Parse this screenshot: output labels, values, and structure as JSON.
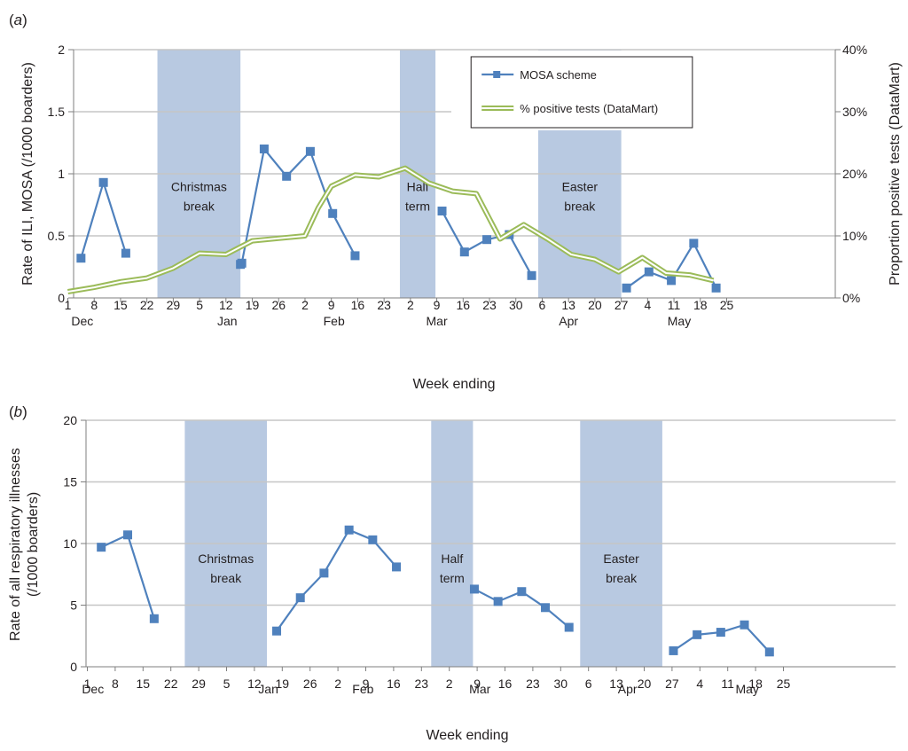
{
  "colors": {
    "mosa": "#4f81bd",
    "positive_line": "#9bbb59",
    "break_shade": "#b8c9e1",
    "grid": "#c6c6c6",
    "axis": "#7f7f7f"
  },
  "chart_data": [
    {
      "type": "line",
      "panel_label": "(a)",
      "xlabel": "Week ending",
      "ylabel": "Rate of ILI, MOSA (/1000 boarders)",
      "y2label": "Proportion positive tests (DataMart)",
      "ylim": [
        0,
        2
      ],
      "y2lim": [
        0,
        40
      ],
      "grid": true,
      "legend_placement": "top-right",
      "x_tick_labels": [
        "1",
        "8",
        "15",
        "22",
        "29",
        "5",
        "12",
        "19",
        "26",
        "2",
        "9",
        "16",
        "23",
        "2",
        "9",
        "16",
        "23",
        "30",
        "6",
        "13",
        "20",
        "27",
        "4",
        "11",
        "18",
        "25"
      ],
      "month_labels": [
        "Dec",
        "Jan",
        "Feb",
        "Mar",
        "Apr",
        "May"
      ],
      "y_tick_labels": [
        "0",
        "0.5",
        "1",
        "1.5",
        "2"
      ],
      "y2_tick_labels": [
        "0%",
        "10%",
        "20%",
        "30%",
        "40%"
      ],
      "breaks": [
        {
          "label": "Christmas break",
          "lines": [
            "Christmas",
            "break"
          ],
          "start": 3.4,
          "end": 6.55
        },
        {
          "label": "Half term",
          "lines": [
            "Half",
            "term"
          ],
          "start": 12.6,
          "end": 13.95
        },
        {
          "label": "Easter break",
          "lines": [
            "Easter",
            "break"
          ],
          "start": 17.85,
          "end": 21.0
        }
      ],
      "series": [
        {
          "name": "MOSA scheme",
          "kind": "markers",
          "segments": [
            [
              [
                0.5,
                0.32
              ],
              [
                1.35,
                0.93
              ],
              [
                2.2,
                0.36
              ]
            ],
            [
              [
                6.55,
                0.27
              ],
              [
                6.6,
                0.28
              ],
              [
                7.45,
                1.2
              ],
              [
                8.3,
                0.98
              ],
              [
                9.2,
                1.18
              ],
              [
                10.05,
                0.68
              ],
              [
                10.9,
                0.34
              ]
            ],
            [
              [
                14.2,
                0.7
              ],
              [
                15.05,
                0.37
              ],
              [
                15.9,
                0.47
              ],
              [
                16.75,
                0.51
              ],
              [
                17.6,
                0.18
              ]
            ],
            [
              [
                21.2,
                0.08
              ],
              [
                22.05,
                0.21
              ],
              [
                22.9,
                0.14
              ],
              [
                23.75,
                0.44
              ],
              [
                24.6,
                0.08
              ]
            ]
          ]
        },
        {
          "name": "% positive tests (DataMart)",
          "kind": "double-line",
          "points": [
            [
              0.0,
              1
            ],
            [
              1.0,
              1.7
            ],
            [
              2.0,
              2.6
            ],
            [
              3.0,
              3.2
            ],
            [
              4.0,
              4.8
            ],
            [
              5.0,
              7.2
            ],
            [
              6.0,
              7.0
            ],
            [
              7.0,
              9.2
            ],
            [
              8.0,
              9.6
            ],
            [
              9.0,
              10.0
            ],
            [
              9.5,
              14.5
            ],
            [
              10.0,
              18.0
            ],
            [
              10.9,
              19.8
            ],
            [
              11.8,
              19.5
            ],
            [
              12.8,
              20.9
            ],
            [
              13.7,
              18.5
            ],
            [
              14.6,
              17.2
            ],
            [
              15.5,
              16.8
            ],
            [
              16.4,
              9.5
            ],
            [
              17.3,
              11.8
            ],
            [
              18.2,
              9.5
            ],
            [
              19.1,
              7.0
            ],
            [
              20.0,
              6.2
            ],
            [
              20.9,
              4.2
            ],
            [
              21.8,
              6.5
            ],
            [
              22.7,
              4.0
            ],
            [
              23.6,
              3.7
            ],
            [
              24.5,
              2.8
            ]
          ]
        }
      ]
    },
    {
      "type": "line",
      "panel_label": "(b)",
      "xlabel": "Week ending",
      "ylabel": "Rate of all respiratory illnesses (/1000 boarders)",
      "ylabel_lines": [
        "Rate of all respiratory illnesses",
        "(/1000 boarders)"
      ],
      "ylim": [
        0,
        20
      ],
      "grid": true,
      "x_tick_labels": [
        "1",
        "8",
        "15",
        "22",
        "29",
        "5",
        "12",
        "19",
        "26",
        "2",
        "9",
        "16",
        "23",
        "2",
        "9",
        "16",
        "23",
        "30",
        "6",
        "13",
        "20",
        "27",
        "4",
        "11",
        "18",
        "25"
      ],
      "month_labels": [
        "Dec",
        "Jan",
        "Feb",
        "Mar",
        "Apr",
        "May"
      ],
      "y_tick_labels": [
        "0",
        "5",
        "10",
        "15",
        "20"
      ],
      "breaks": [
        {
          "label": "Christmas break",
          "lines": [
            "Christmas",
            "break"
          ],
          "start": 3.5,
          "end": 6.45
        },
        {
          "label": "Half term",
          "lines": [
            "Half",
            "term"
          ],
          "start": 12.35,
          "end": 13.85
        },
        {
          "label": "Easter break",
          "lines": [
            "Easter",
            "break"
          ],
          "start": 17.7,
          "end": 20.65
        }
      ],
      "series": [
        {
          "name": "",
          "kind": "markers",
          "segments": [
            [
              [
                0.5,
                9.7
              ],
              [
                1.45,
                10.7
              ],
              [
                2.4,
                3.9
              ]
            ],
            [
              [
                6.8,
                2.9
              ],
              [
                7.65,
                5.6
              ],
              [
                8.5,
                7.6
              ],
              [
                9.4,
                11.1
              ],
              [
                10.25,
                10.3
              ],
              [
                11.1,
                8.1
              ]
            ],
            [
              [
                13.9,
                6.3
              ],
              [
                14.75,
                5.3
              ],
              [
                15.6,
                6.1
              ],
              [
                16.45,
                4.8
              ],
              [
                17.3,
                3.2
              ]
            ],
            [
              [
                21.05,
                1.3
              ],
              [
                21.9,
                2.6
              ],
              [
                22.75,
                2.8
              ],
              [
                23.6,
                3.4
              ],
              [
                24.5,
                1.2
              ]
            ]
          ]
        }
      ]
    }
  ]
}
